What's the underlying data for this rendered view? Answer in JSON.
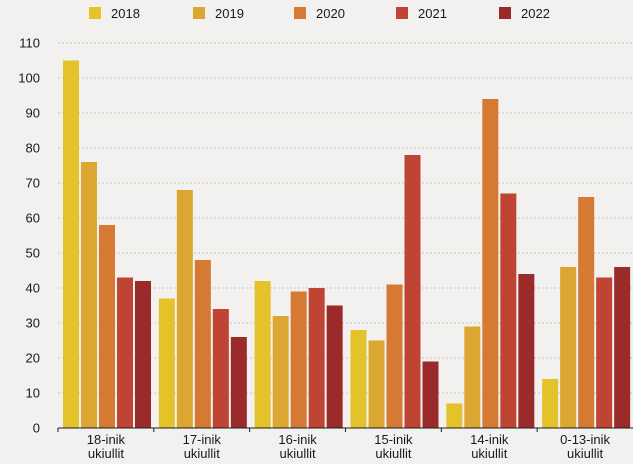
{
  "chart_data": {
    "type": "bar",
    "title": "",
    "xlabel": "",
    "ylabel": "",
    "ylim": [
      0,
      110
    ],
    "yticks": [
      0,
      10,
      20,
      30,
      40,
      50,
      60,
      70,
      80,
      90,
      100,
      110
    ],
    "grid": true,
    "legend_position": "top",
    "categories": [
      [
        "18-inik",
        "ukiullit"
      ],
      [
        "17-inik",
        "ukiullit"
      ],
      [
        "16-inik",
        "ukiullit"
      ],
      [
        "15-inik",
        "ukiullit"
      ],
      [
        "14-inik",
        "ukiullit"
      ],
      [
        "0-13-inik",
        "ukiullit"
      ]
    ],
    "series": [
      {
        "name": "2018",
        "color": "#e3c22a",
        "values": [
          105,
          37,
          42,
          28,
          7,
          14
        ]
      },
      {
        "name": "2019",
        "color": "#dba632",
        "values": [
          76,
          68,
          32,
          25,
          29,
          46
        ]
      },
      {
        "name": "2020",
        "color": "#d67933",
        "values": [
          58,
          48,
          39,
          41,
          94,
          66
        ]
      },
      {
        "name": "2021",
        "color": "#c04434",
        "values": [
          43,
          34,
          40,
          78,
          67,
          43
        ]
      },
      {
        "name": "2022",
        "color": "#9b2b2b",
        "values": [
          42,
          26,
          35,
          19,
          44,
          46
        ]
      }
    ]
  }
}
